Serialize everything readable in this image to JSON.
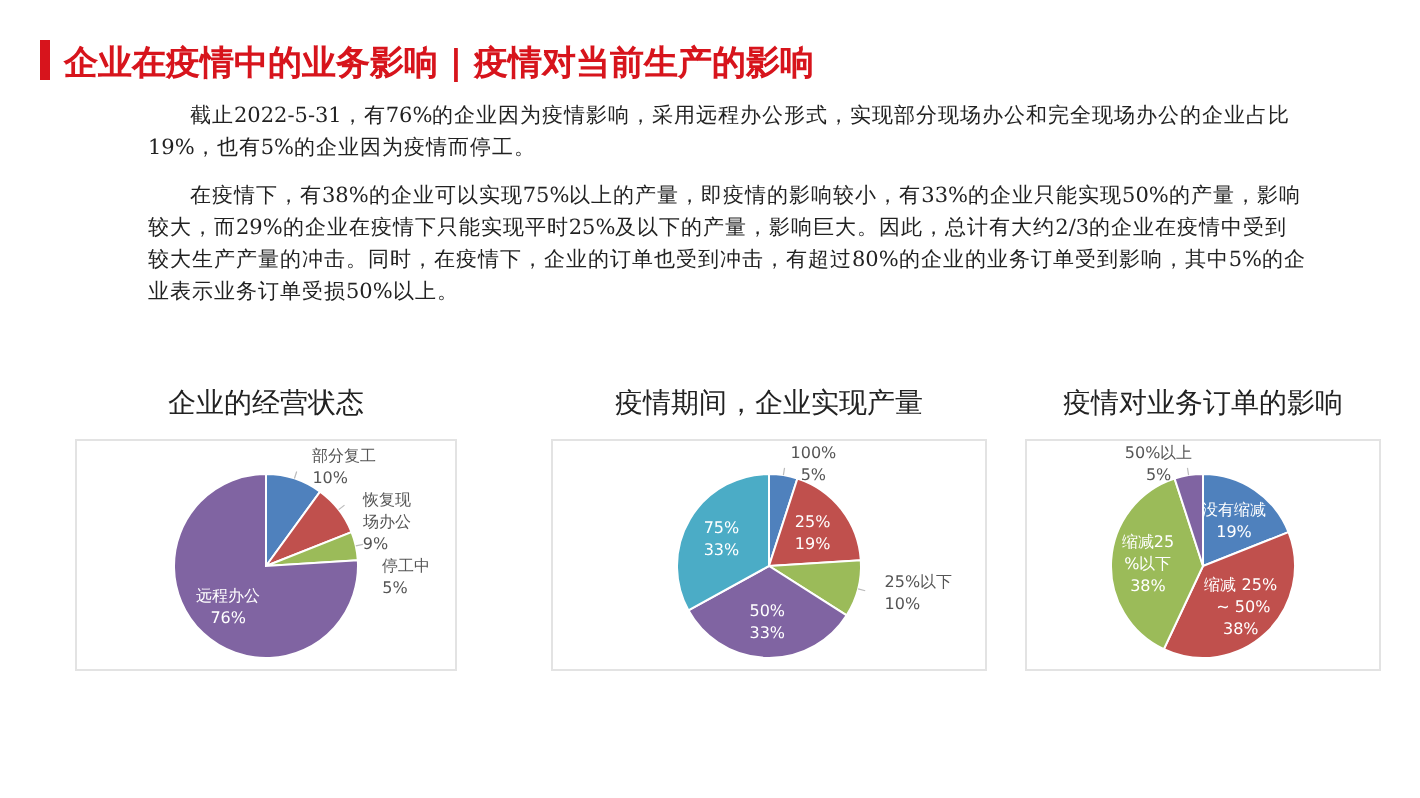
{
  "chart_data": [
    {
      "type": "other",
      "title": "企业在疫情中的业务影响 | 疫情对当前生产的影响",
      "annotations": [
        "截止2022-5-31，有76%的企业因为疫情影响，采用远程办公形式，实现部分现场办公和完全现场办公的企业占比19%，也有5%的企业因为疫情而停工。",
        "在疫情下，有38%的企业可以实现75%以上的产量，即疫情的影响较小，有33%的企业只能实现50%的产量，影响较大，而29%的企业在疫情下只能实现平时25%及以下的产量，影响巨大。因此，总计有大约2/3的企业在疫情中受到较大生产产量的冲击。同时，在疫情下，企业的订单也受到冲击，有超过80%的企业的业务订单受到影响，其中5%的企业表示业务订单受损50%以上。"
      ]
    },
    {
      "type": "pie",
      "title": "企业的经营状态",
      "categories": [
        "部分复工",
        "恢复现场办公",
        "停工中",
        "远程办公"
      ],
      "values": [
        10,
        9,
        5,
        76
      ],
      "colors": [
        "#4f81bd",
        "#c0504d",
        "#9bbb59",
        "#8064a2"
      ],
      "value_labels": [
        "10%",
        "9%",
        "5%",
        "76%"
      ]
    },
    {
      "type": "pie",
      "title": "疫情期间，企业实现产量",
      "categories": [
        "100%",
        "25%",
        "25%以下",
        "50%",
        "75%"
      ],
      "values": [
        5,
        19,
        10,
        33,
        33
      ],
      "colors": [
        "#4f81bd",
        "#c0504d",
        "#9bbb59",
        "#8064a2",
        "#4bacc6"
      ],
      "value_labels": [
        "5%",
        "19%",
        "10%",
        "33%",
        "33%"
      ]
    },
    {
      "type": "pie",
      "title": "疫情对业务订单的影响",
      "categories": [
        "没有缩减",
        "缩减 25% ~ 50%",
        "缩减25%以下",
        "50%以上"
      ],
      "values": [
        19,
        38,
        38,
        5
      ],
      "colors": [
        "#4f81bd",
        "#c0504d",
        "#9bbb59",
        "#8064a2"
      ],
      "value_labels": [
        "19%",
        "38%",
        "38%",
        "5%"
      ]
    }
  ]
}
